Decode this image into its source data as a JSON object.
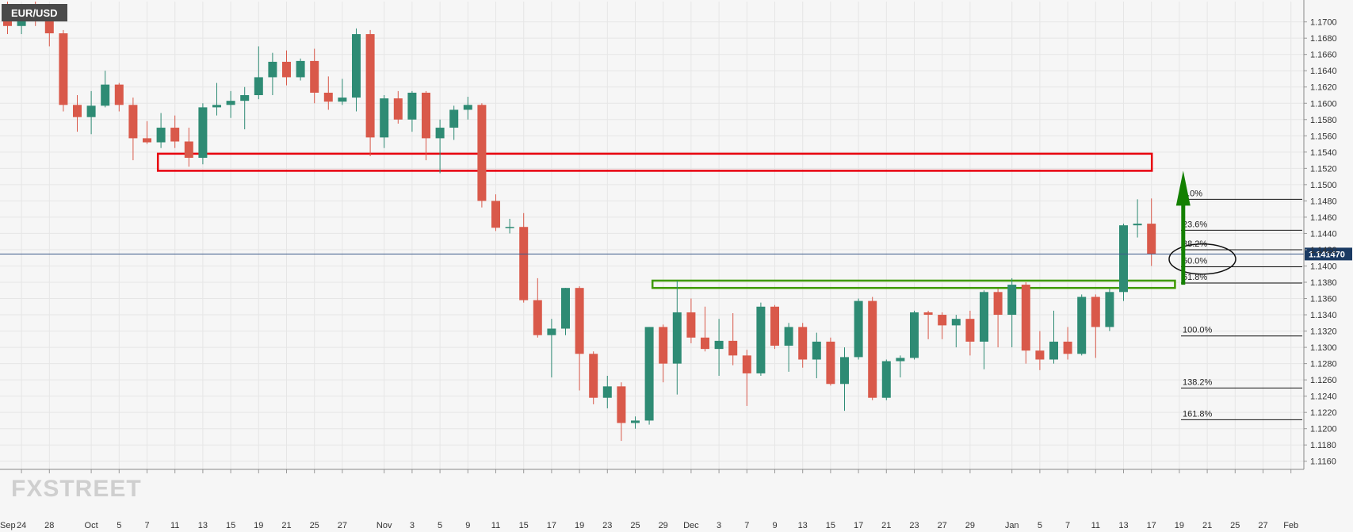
{
  "symbol": "EUR/USD",
  "logo": "FXSTREET",
  "chart_data": {
    "type": "candlestick",
    "ylim": [
      1.115,
      1.1725
    ],
    "y_ticks": [
      "1.1700",
      "1.1680",
      "1.1660",
      "1.1640",
      "1.1620",
      "1.1600",
      "1.1580",
      "1.1560",
      "1.1540",
      "1.1520",
      "1.1500",
      "1.1480",
      "1.1460",
      "1.1440",
      "1.1420",
      "1.1400",
      "1.1380",
      "1.1360",
      "1.1340",
      "1.1320",
      "1.1300",
      "1.1280",
      "1.1260",
      "1.1240",
      "1.1220",
      "1.1200",
      "1.1180",
      "1.1160"
    ],
    "current_price": "1.141470",
    "current_price_value": 1.14147,
    "x_labels": [
      {
        "i": 1,
        "label": "24"
      },
      {
        "i": 3,
        "label": "28"
      },
      {
        "i": 6,
        "label": "Oct"
      },
      {
        "i": 8,
        "label": "5"
      },
      {
        "i": 10,
        "label": "7"
      },
      {
        "i": 12,
        "label": "11"
      },
      {
        "i": 14,
        "label": "13"
      },
      {
        "i": 16,
        "label": "15"
      },
      {
        "i": 18,
        "label": "19"
      },
      {
        "i": 20,
        "label": "21"
      },
      {
        "i": 22,
        "label": "25"
      },
      {
        "i": 24,
        "label": "27"
      },
      {
        "i": 27,
        "label": "Nov"
      },
      {
        "i": 29,
        "label": "3"
      },
      {
        "i": 31,
        "label": "5"
      },
      {
        "i": 33,
        "label": "9"
      },
      {
        "i": 35,
        "label": "11"
      },
      {
        "i": 37,
        "label": "15"
      },
      {
        "i": 39,
        "label": "17"
      },
      {
        "i": 41,
        "label": "19"
      },
      {
        "i": 43,
        "label": "23"
      },
      {
        "i": 45,
        "label": "25"
      },
      {
        "i": 47,
        "label": "29"
      },
      {
        "i": 49,
        "label": "Dec"
      },
      {
        "i": 51,
        "label": "3"
      },
      {
        "i": 53,
        "label": "7"
      },
      {
        "i": 55,
        "label": "9"
      },
      {
        "i": 57,
        "label": "13"
      },
      {
        "i": 59,
        "label": "15"
      },
      {
        "i": 61,
        "label": "17"
      },
      {
        "i": 63,
        "label": "21"
      },
      {
        "i": 65,
        "label": "23"
      },
      {
        "i": 67,
        "label": "27"
      },
      {
        "i": 69,
        "label": "29"
      },
      {
        "i": 72,
        "label": "Jan"
      },
      {
        "i": 74,
        "label": "5"
      },
      {
        "i": 76,
        "label": "7"
      },
      {
        "i": 78,
        "label": "11"
      },
      {
        "i": 80,
        "label": "13"
      },
      {
        "i": 82,
        "label": "17"
      },
      {
        "i": 84,
        "label": "19"
      },
      {
        "i": 86,
        "label": "21"
      },
      {
        "i": 88,
        "label": "25"
      },
      {
        "i": 90,
        "label": "27"
      },
      {
        "i": 92,
        "label": "Feb"
      }
    ],
    "x_first_label": "Sep",
    "candles": [
      {
        "o": 1.1712,
        "h": 1.1725,
        "l": 1.1685,
        "c": 1.1695
      },
      {
        "o": 1.1695,
        "h": 1.172,
        "l": 1.1685,
        "c": 1.1718
      },
      {
        "o": 1.1718,
        "h": 1.1725,
        "l": 1.1695,
        "c": 1.1702
      },
      {
        "o": 1.1702,
        "h": 1.1715,
        "l": 1.167,
        "c": 1.1686
      },
      {
        "o": 1.1686,
        "h": 1.169,
        "l": 1.159,
        "c": 1.1598
      },
      {
        "o": 1.1598,
        "h": 1.161,
        "l": 1.1565,
        "c": 1.1583
      },
      {
        "o": 1.1583,
        "h": 1.1615,
        "l": 1.1562,
        "c": 1.1597
      },
      {
        "o": 1.1597,
        "h": 1.164,
        "l": 1.1595,
        "c": 1.1623
      },
      {
        "o": 1.1623,
        "h": 1.1625,
        "l": 1.159,
        "c": 1.1598
      },
      {
        "o": 1.1598,
        "h": 1.1607,
        "l": 1.153,
        "c": 1.1557
      },
      {
        "o": 1.1557,
        "h": 1.1578,
        "l": 1.155,
        "c": 1.1552
      },
      {
        "o": 1.1552,
        "h": 1.1588,
        "l": 1.1545,
        "c": 1.157
      },
      {
        "o": 1.157,
        "h": 1.1585,
        "l": 1.1545,
        "c": 1.1553
      },
      {
        "o": 1.1553,
        "h": 1.157,
        "l": 1.1522,
        "c": 1.1533
      },
      {
        "o": 1.1533,
        "h": 1.16,
        "l": 1.1525,
        "c": 1.1595
      },
      {
        "o": 1.1595,
        "h": 1.1625,
        "l": 1.1585,
        "c": 1.1598
      },
      {
        "o": 1.1598,
        "h": 1.1615,
        "l": 1.1582,
        "c": 1.1603
      },
      {
        "o": 1.1603,
        "h": 1.162,
        "l": 1.1568,
        "c": 1.161
      },
      {
        "o": 1.161,
        "h": 1.167,
        "l": 1.1605,
        "c": 1.1632
      },
      {
        "o": 1.1632,
        "h": 1.1662,
        "l": 1.161,
        "c": 1.1651
      },
      {
        "o": 1.1651,
        "h": 1.1665,
        "l": 1.1622,
        "c": 1.1632
      },
      {
        "o": 1.1632,
        "h": 1.1655,
        "l": 1.1628,
        "c": 1.1652
      },
      {
        "o": 1.1652,
        "h": 1.1667,
        "l": 1.16,
        "c": 1.1613
      },
      {
        "o": 1.1613,
        "h": 1.1633,
        "l": 1.1592,
        "c": 1.1602
      },
      {
        "o": 1.1602,
        "h": 1.163,
        "l": 1.1598,
        "c": 1.1607
      },
      {
        "o": 1.1607,
        "h": 1.1692,
        "l": 1.159,
        "c": 1.1685
      },
      {
        "o": 1.1685,
        "h": 1.169,
        "l": 1.1535,
        "c": 1.1558
      },
      {
        "o": 1.1558,
        "h": 1.161,
        "l": 1.1545,
        "c": 1.1606
      },
      {
        "o": 1.1606,
        "h": 1.1615,
        "l": 1.1575,
        "c": 1.158
      },
      {
        "o": 1.158,
        "h": 1.1615,
        "l": 1.1565,
        "c": 1.1613
      },
      {
        "o": 1.1613,
        "h": 1.1615,
        "l": 1.153,
        "c": 1.1557
      },
      {
        "o": 1.1557,
        "h": 1.158,
        "l": 1.1514,
        "c": 1.157
      },
      {
        "o": 1.157,
        "h": 1.1597,
        "l": 1.1555,
        "c": 1.1592
      },
      {
        "o": 1.1592,
        "h": 1.1608,
        "l": 1.158,
        "c": 1.1598
      },
      {
        "o": 1.1598,
        "h": 1.16,
        "l": 1.1472,
        "c": 1.148
      },
      {
        "o": 1.148,
        "h": 1.1488,
        "l": 1.1443,
        "c": 1.1447
      },
      {
        "o": 1.1447,
        "h": 1.1458,
        "l": 1.144,
        "c": 1.1448
      },
      {
        "o": 1.1448,
        "h": 1.1465,
        "l": 1.1355,
        "c": 1.1358
      },
      {
        "o": 1.1358,
        "h": 1.1385,
        "l": 1.1312,
        "c": 1.1315
      },
      {
        "o": 1.1315,
        "h": 1.1335,
        "l": 1.1263,
        "c": 1.1323
      },
      {
        "o": 1.1323,
        "h": 1.1373,
        "l": 1.1315,
        "c": 1.1373
      },
      {
        "o": 1.1373,
        "h": 1.1375,
        "l": 1.1247,
        "c": 1.1292
      },
      {
        "o": 1.1292,
        "h": 1.1295,
        "l": 1.123,
        "c": 1.1238
      },
      {
        "o": 1.1238,
        "h": 1.1265,
        "l": 1.1225,
        "c": 1.1252
      },
      {
        "o": 1.1252,
        "h": 1.1257,
        "l": 1.1185,
        "c": 1.1207
      },
      {
        "o": 1.1207,
        "h": 1.1215,
        "l": 1.12,
        "c": 1.121
      },
      {
        "o": 1.121,
        "h": 1.1325,
        "l": 1.1205,
        "c": 1.1325
      },
      {
        "o": 1.1325,
        "h": 1.1328,
        "l": 1.1257,
        "c": 1.128
      },
      {
        "o": 1.128,
        "h": 1.1382,
        "l": 1.1242,
        "c": 1.1343
      },
      {
        "o": 1.1343,
        "h": 1.136,
        "l": 1.1305,
        "c": 1.1312
      },
      {
        "o": 1.1312,
        "h": 1.135,
        "l": 1.1295,
        "c": 1.1298
      },
      {
        "o": 1.1298,
        "h": 1.1335,
        "l": 1.1265,
        "c": 1.1308
      },
      {
        "o": 1.1308,
        "h": 1.1342,
        "l": 1.1278,
        "c": 1.129
      },
      {
        "o": 1.129,
        "h": 1.1297,
        "l": 1.1228,
        "c": 1.1268
      },
      {
        "o": 1.1268,
        "h": 1.1355,
        "l": 1.1265,
        "c": 1.135
      },
      {
        "o": 1.135,
        "h": 1.1352,
        "l": 1.1298,
        "c": 1.1302
      },
      {
        "o": 1.1302,
        "h": 1.133,
        "l": 1.127,
        "c": 1.1325
      },
      {
        "o": 1.1325,
        "h": 1.133,
        "l": 1.1275,
        "c": 1.1285
      },
      {
        "o": 1.1285,
        "h": 1.1318,
        "l": 1.1262,
        "c": 1.1307
      },
      {
        "o": 1.1307,
        "h": 1.1312,
        "l": 1.1253,
        "c": 1.1255
      },
      {
        "o": 1.1255,
        "h": 1.13,
        "l": 1.1222,
        "c": 1.1288
      },
      {
        "o": 1.1288,
        "h": 1.136,
        "l": 1.1285,
        "c": 1.1357
      },
      {
        "o": 1.1357,
        "h": 1.1362,
        "l": 1.1235,
        "c": 1.1238
      },
      {
        "o": 1.1238,
        "h": 1.1285,
        "l": 1.1235,
        "c": 1.1283
      },
      {
        "o": 1.1283,
        "h": 1.129,
        "l": 1.1263,
        "c": 1.1287
      },
      {
        "o": 1.1287,
        "h": 1.1345,
        "l": 1.1285,
        "c": 1.1343
      },
      {
        "o": 1.1343,
        "h": 1.1345,
        "l": 1.131,
        "c": 1.134
      },
      {
        "o": 1.134,
        "h": 1.1343,
        "l": 1.131,
        "c": 1.1327
      },
      {
        "o": 1.1327,
        "h": 1.134,
        "l": 1.13,
        "c": 1.1335
      },
      {
        "o": 1.1335,
        "h": 1.1345,
        "l": 1.129,
        "c": 1.1307
      },
      {
        "o": 1.1307,
        "h": 1.137,
        "l": 1.1273,
        "c": 1.1368
      },
      {
        "o": 1.1368,
        "h": 1.1372,
        "l": 1.13,
        "c": 1.134
      },
      {
        "o": 1.134,
        "h": 1.1385,
        "l": 1.13,
        "c": 1.1377
      },
      {
        "o": 1.1377,
        "h": 1.138,
        "l": 1.128,
        "c": 1.1296
      },
      {
        "o": 1.1296,
        "h": 1.132,
        "l": 1.1272,
        "c": 1.1285
      },
      {
        "o": 1.1285,
        "h": 1.1345,
        "l": 1.128,
        "c": 1.1307
      },
      {
        "o": 1.1307,
        "h": 1.1325,
        "l": 1.1285,
        "c": 1.1292
      },
      {
        "o": 1.1292,
        "h": 1.1365,
        "l": 1.129,
        "c": 1.1362
      },
      {
        "o": 1.1362,
        "h": 1.1365,
        "l": 1.1287,
        "c": 1.1325
      },
      {
        "o": 1.1325,
        "h": 1.1372,
        "l": 1.132,
        "c": 1.1368
      },
      {
        "o": 1.1368,
        "h": 1.1452,
        "l": 1.1357,
        "c": 1.145
      },
      {
        "o": 1.145,
        "h": 1.1482,
        "l": 1.1435,
        "c": 1.1452
      },
      {
        "o": 1.1452,
        "h": 1.1483,
        "l": 1.14,
        "c": 1.1415
      }
    ],
    "fib_levels": [
      {
        "label": "0.0%",
        "value": 1.1482
      },
      {
        "label": "23.6%",
        "value": 1.1444
      },
      {
        "label": "38.2%",
        "value": 1.142
      },
      {
        "label": "50.0%",
        "value": 1.1399
      },
      {
        "label": "61.8%",
        "value": 1.1379
      },
      {
        "label": "100.0%",
        "value": 1.1314
      },
      {
        "label": "138.2%",
        "value": 1.125
      },
      {
        "label": "161.8%",
        "value": 1.1211
      }
    ],
    "resistance_zone": {
      "from_i": 12,
      "to_i": 82,
      "high": 1.1538,
      "low": 1.1517,
      "color": "#e8000d"
    },
    "support_zone": {
      "from_i": 47,
      "to_i": 84,
      "high": 1.1382,
      "low": 1.1373,
      "color": "#3e9a00"
    },
    "arrow": {
      "i": 83,
      "from": 1.1377,
      "to": 1.1517,
      "color": "#138000"
    },
    "colors": {
      "up": "#2e8b74",
      "down": "#d9594a",
      "grid": "#e6e6e6",
      "price_tag": "#1a3a63",
      "price_line": "#3c5a8a"
    }
  }
}
